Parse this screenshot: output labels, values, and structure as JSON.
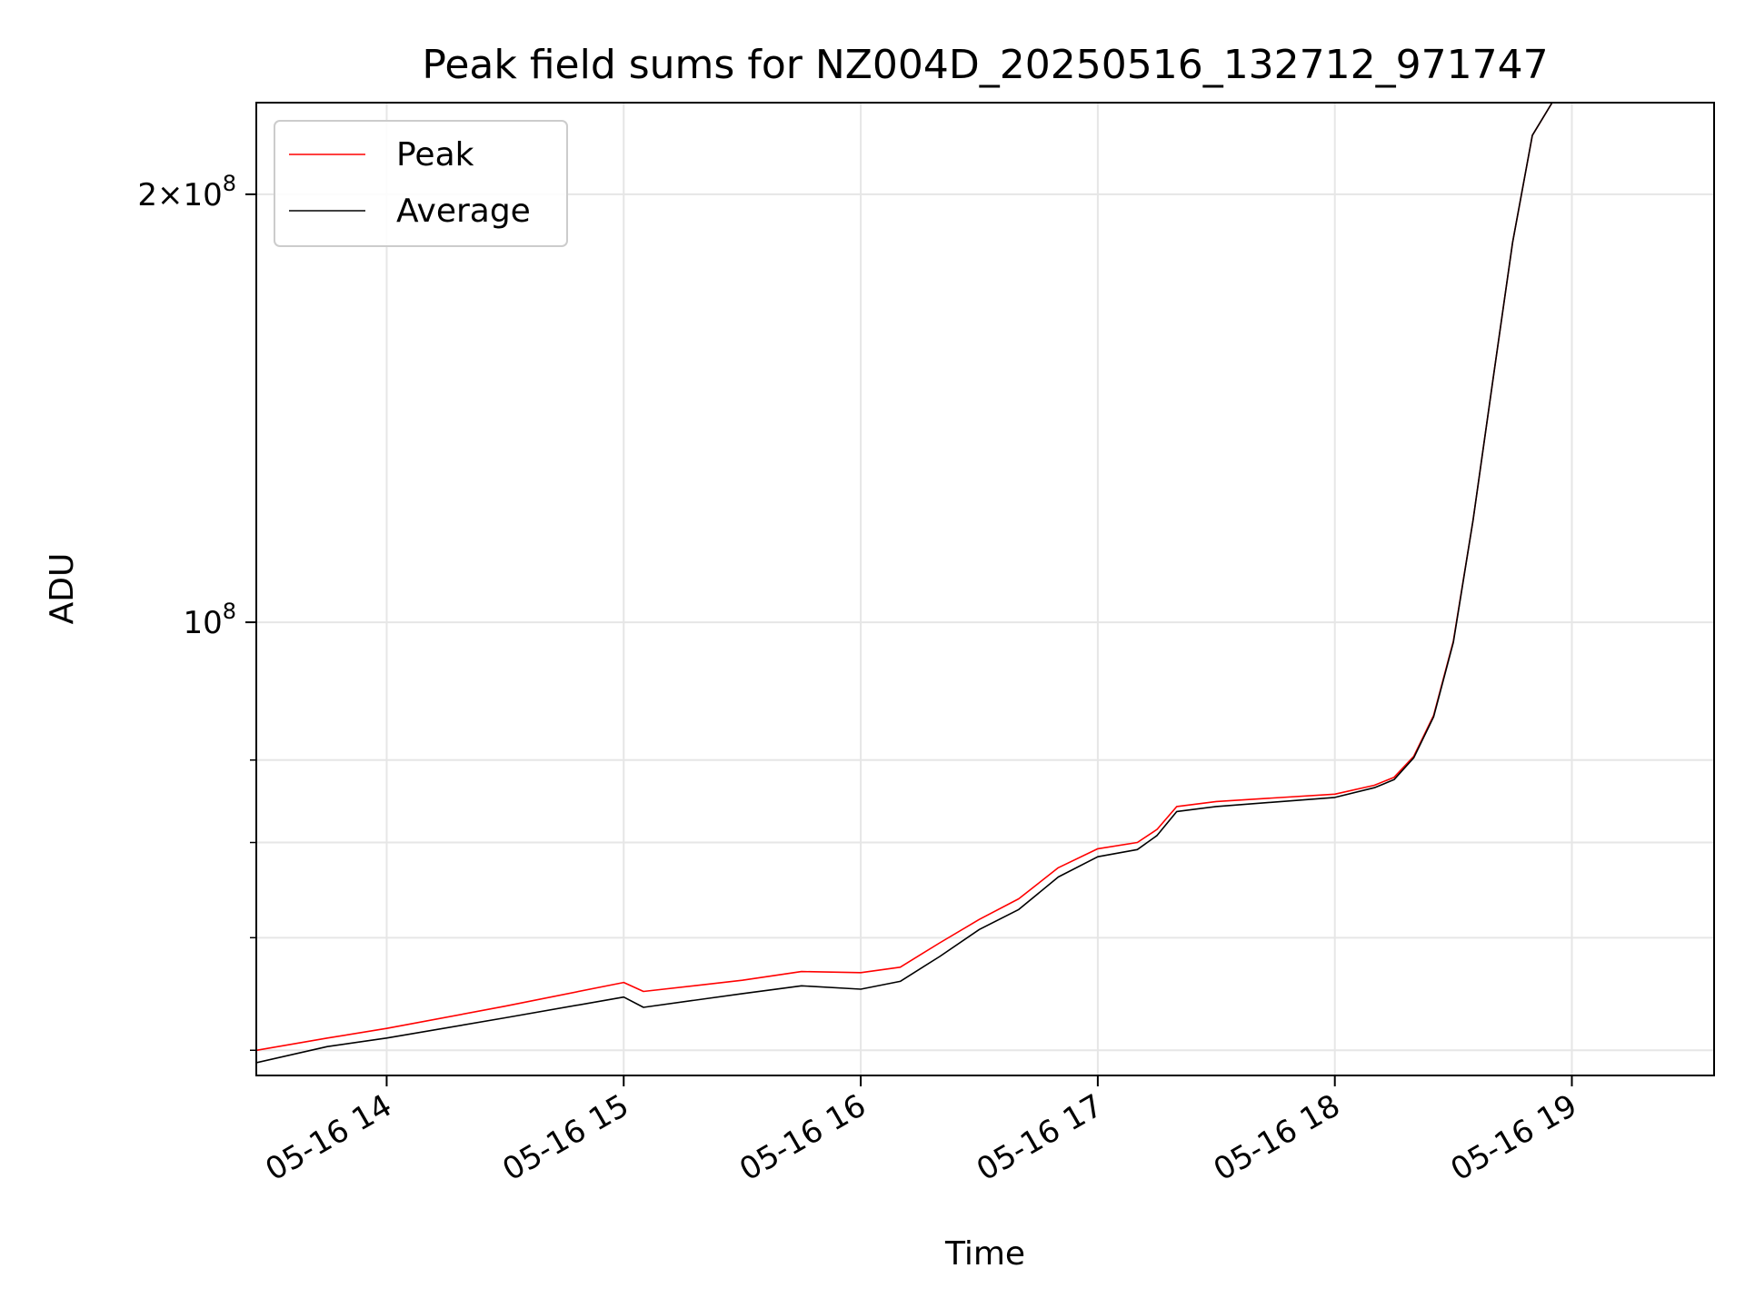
{
  "chart_data": {
    "type": "line",
    "title": "Peak field sums for NZ004D_20250516_132712_971747",
    "xlabel": "Time",
    "ylabel": "ADU",
    "yscale": "log",
    "x_tick_labels": [
      "05-16 14",
      "05-16 15",
      "05-16 16",
      "05-16 17",
      "05-16 18",
      "05-16 19"
    ],
    "y_tick_labels": [
      {
        "mantissa": "2",
        "exponent": "8",
        "value": 200000000
      },
      {
        "mantissa": "",
        "exponent": "8",
        "value": 100000000
      }
    ],
    "xlim": [
      "2025-05-16 13:27",
      "2025-05-16 19:36"
    ],
    "ylim": [
      48000000,
      232000000
    ],
    "grid": true,
    "legend_position": "upper left",
    "series": [
      {
        "name": "Peak",
        "color": "#ff0000",
        "x": [
          "2025-05-16 13:27",
          "2025-05-16 13:45",
          "2025-05-16 14:00",
          "2025-05-16 14:30",
          "2025-05-16 15:00",
          "2025-05-16 15:05",
          "2025-05-16 15:30",
          "2025-05-16 15:45",
          "2025-05-16 16:00",
          "2025-05-16 16:10",
          "2025-05-16 16:20",
          "2025-05-16 16:30",
          "2025-05-16 16:40",
          "2025-05-16 16:50",
          "2025-05-16 17:00",
          "2025-05-16 17:10",
          "2025-05-16 17:15",
          "2025-05-16 17:20",
          "2025-05-16 17:30",
          "2025-05-16 18:00",
          "2025-05-16 18:10",
          "2025-05-16 18:15",
          "2025-05-16 18:20",
          "2025-05-16 18:25",
          "2025-05-16 18:30",
          "2025-05-16 18:35",
          "2025-05-16 18:40",
          "2025-05-16 18:45",
          "2025-05-16 18:50",
          "2025-05-16 18:55"
        ],
        "y": [
          50000000,
          51000000,
          51800000,
          53700000,
          55800000,
          55000000,
          56000000,
          56800000,
          56700000,
          57200000,
          59500000,
          61800000,
          63900000,
          67200000,
          69300000,
          70000000,
          71500000,
          74200000,
          74800000,
          75700000,
          76800000,
          77800000,
          80500000,
          86000000,
          97000000,
          118000000,
          148000000,
          185000000,
          220000000,
          232000000
        ]
      },
      {
        "name": "Average",
        "color": "#000000",
        "x": [
          "2025-05-16 13:27",
          "2025-05-16 13:45",
          "2025-05-16 14:00",
          "2025-05-16 14:30",
          "2025-05-16 15:00",
          "2025-05-16 15:05",
          "2025-05-16 15:30",
          "2025-05-16 15:45",
          "2025-05-16 16:00",
          "2025-05-16 16:10",
          "2025-05-16 16:20",
          "2025-05-16 16:30",
          "2025-05-16 16:40",
          "2025-05-16 16:50",
          "2025-05-16 17:00",
          "2025-05-16 17:10",
          "2025-05-16 17:15",
          "2025-05-16 17:20",
          "2025-05-16 17:30",
          "2025-05-16 18:00",
          "2025-05-16 18:10",
          "2025-05-16 18:15",
          "2025-05-16 18:20",
          "2025-05-16 18:25",
          "2025-05-16 18:30",
          "2025-05-16 18:35",
          "2025-05-16 18:40",
          "2025-05-16 18:45",
          "2025-05-16 18:50",
          "2025-05-16 18:55"
        ],
        "y": [
          49000000,
          50300000,
          51000000,
          52700000,
          54500000,
          53600000,
          54800000,
          55500000,
          55200000,
          55900000,
          58200000,
          60800000,
          62800000,
          66200000,
          68400000,
          69200000,
          70800000,
          73600000,
          74200000,
          75300000,
          76500000,
          77500000,
          80300000,
          85800000,
          96800000,
          118000000,
          148000000,
          185000000,
          220000000,
          232000000
        ]
      }
    ]
  }
}
